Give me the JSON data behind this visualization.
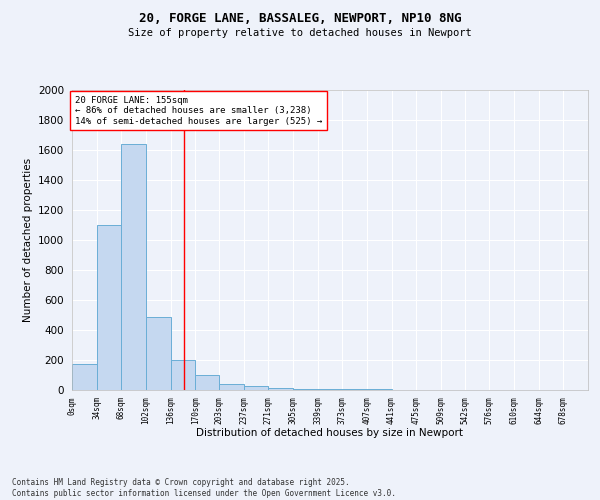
{
  "title_line1": "20, FORGE LANE, BASSALEG, NEWPORT, NP10 8NG",
  "title_line2": "Size of property relative to detached houses in Newport",
  "xlabel": "Distribution of detached houses by size in Newport",
  "ylabel": "Number of detached properties",
  "bar_edges": [
    0,
    34,
    68,
    102,
    136,
    170,
    203,
    237,
    271,
    305,
    339,
    373,
    407,
    441,
    475,
    509,
    542,
    576,
    610,
    644,
    678,
    712
  ],
  "bar_heights": [
    175,
    1100,
    1640,
    490,
    200,
    100,
    40,
    25,
    15,
    10,
    5,
    5,
    5,
    3,
    2,
    2,
    1,
    1,
    1,
    1,
    0
  ],
  "bar_color": "#c5d8f0",
  "bar_edgecolor": "#6aaed6",
  "bar_linewidth": 0.7,
  "tick_labels": [
    "0sqm",
    "34sqm",
    "68sqm",
    "102sqm",
    "136sqm",
    "170sqm",
    "203sqm",
    "237sqm",
    "271sqm",
    "305sqm",
    "339sqm",
    "373sqm",
    "407sqm",
    "441sqm",
    "475sqm",
    "509sqm",
    "542sqm",
    "576sqm",
    "610sqm",
    "644sqm",
    "678sqm"
  ],
  "ylim": [
    0,
    2000
  ],
  "yticks": [
    0,
    200,
    400,
    600,
    800,
    1000,
    1200,
    1400,
    1600,
    1800,
    2000
  ],
  "red_line_x": 155,
  "annotation_title": "20 FORGE LANE: 155sqm",
  "annotation_line1": "← 86% of detached houses are smaller (3,238)",
  "annotation_line2": "14% of semi-detached houses are larger (525) →",
  "footer_line1": "Contains HM Land Registry data © Crown copyright and database right 2025.",
  "footer_line2": "Contains public sector information licensed under the Open Government Licence v3.0.",
  "bg_color": "#eef2fa",
  "grid_color": "#ffffff"
}
